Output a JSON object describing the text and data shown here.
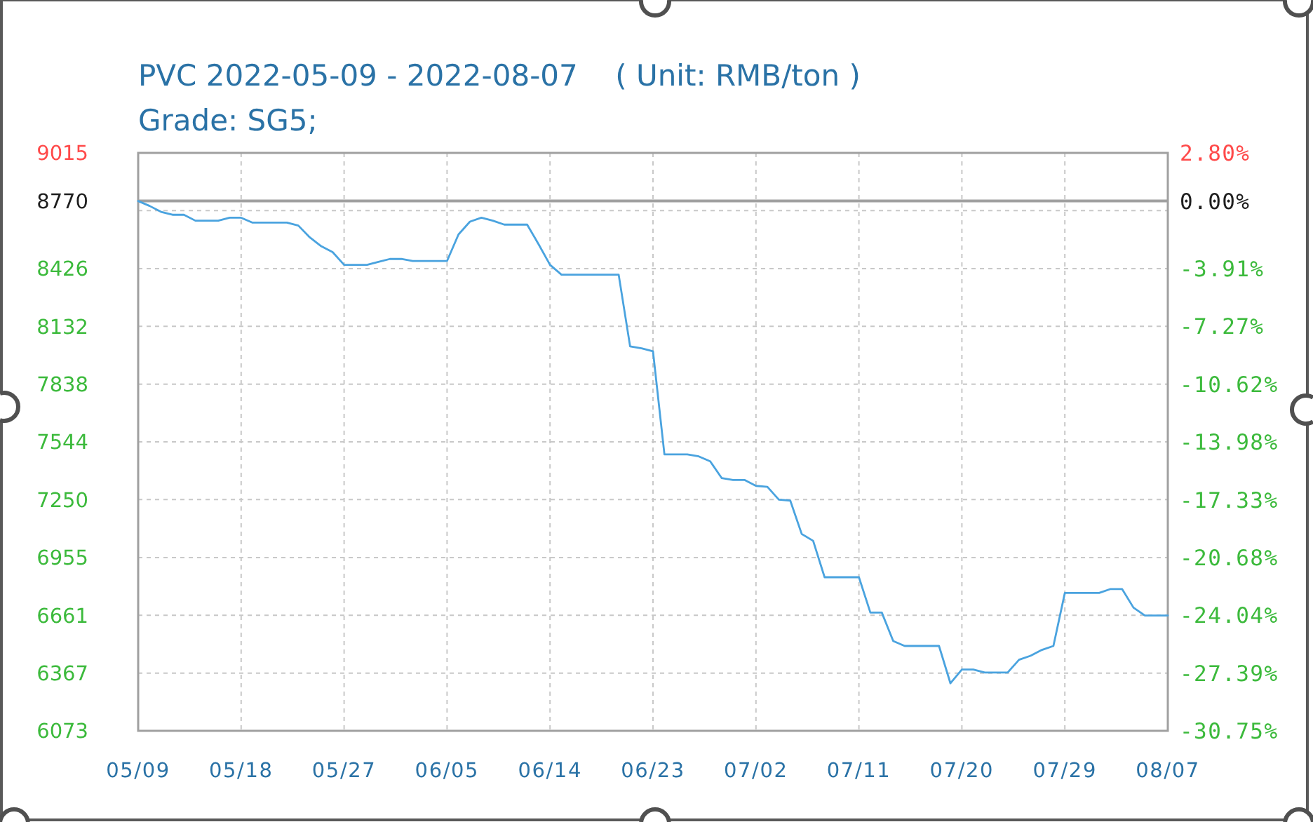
{
  "chart_data": {
    "type": "line",
    "title": "PVC 2022-05-09 - 2022-08-07    ( Unit: RMB/ton )",
    "subtitle": "Grade: SG5;",
    "x": [
      "2022-05-09",
      "2022-05-10",
      "2022-05-11",
      "2022-05-12",
      "2022-05-13",
      "2022-05-14",
      "2022-05-16",
      "2022-05-17",
      "2022-05-18",
      "2022-05-19",
      "2022-05-22",
      "2022-05-23",
      "2022-05-24",
      "2022-05-25",
      "2022-05-26",
      "2022-05-27",
      "2022-05-29",
      "2022-05-30",
      "2022-05-31",
      "2022-06-01",
      "2022-06-02",
      "2022-06-05",
      "2022-06-06",
      "2022-06-07",
      "2022-06-08",
      "2022-06-09",
      "2022-06-10",
      "2022-06-12",
      "2022-06-13",
      "2022-06-14",
      "2022-06-15",
      "2022-06-20",
      "2022-06-21",
      "2022-06-22",
      "2022-06-23",
      "2022-06-24",
      "2022-06-26",
      "2022-06-27",
      "2022-06-28",
      "2022-06-29",
      "2022-06-30",
      "2022-07-01",
      "2022-07-02",
      "2022-07-03",
      "2022-07-04",
      "2022-07-05",
      "2022-07-06",
      "2022-07-07",
      "2022-07-08",
      "2022-07-11",
      "2022-07-12",
      "2022-07-13",
      "2022-07-14",
      "2022-07-15",
      "2022-07-18",
      "2022-07-19",
      "2022-07-20",
      "2022-07-21",
      "2022-07-22",
      "2022-07-24",
      "2022-07-25",
      "2022-07-26",
      "2022-07-27",
      "2022-07-28",
      "2022-07-29",
      "2022-08-01",
      "2022-08-02",
      "2022-08-03",
      "2022-08-04",
      "2022-08-05",
      "2022-08-07"
    ],
    "series": [
      {
        "color": "#4aa3df",
        "values": [
          8770,
          8745,
          8715,
          8700,
          8700,
          8670,
          8670,
          8685,
          8685,
          8660,
          8660,
          8645,
          8585,
          8540,
          8510,
          8445,
          8445,
          8460,
          8475,
          8475,
          8465,
          8465,
          8600,
          8665,
          8685,
          8670,
          8650,
          8650,
          8550,
          8445,
          8395,
          8395,
          8030,
          8020,
          8005,
          7480,
          7480,
          7470,
          7445,
          7360,
          7350,
          7350,
          7320,
          7315,
          7250,
          7245,
          7075,
          7040,
          6855,
          6855,
          6675,
          6675,
          6530,
          6505,
          6505,
          6315,
          6385,
          6385,
          6370,
          6370,
          6435,
          6455,
          6485,
          6505,
          6775,
          6775,
          6795,
          6795,
          6700,
          6660,
          6660
        ]
      }
    ],
    "xlim": [
      "2022-05-09",
      "2022-08-07"
    ],
    "xticks": [
      {
        "value": "2022-05-09",
        "label": "05/09"
      },
      {
        "value": "2022-05-18",
        "label": "05/18"
      },
      {
        "value": "2022-05-27",
        "label": "05/27"
      },
      {
        "value": "2022-06-05",
        "label": "06/05"
      },
      {
        "value": "2022-06-14",
        "label": "06/14"
      },
      {
        "value": "2022-06-23",
        "label": "06/23"
      },
      {
        "value": "2022-07-02",
        "label": "07/02"
      },
      {
        "value": "2022-07-11",
        "label": "07/11"
      },
      {
        "value": "2022-07-20",
        "label": "07/20"
      },
      {
        "value": "2022-07-29",
        "label": "07/29"
      },
      {
        "value": "2022-08-07",
        "label": "08/07"
      }
    ],
    "ylim": [
      6073,
      9015
    ],
    "yticks": [
      6073,
      6367,
      6661,
      6955,
      7250,
      7544,
      7838,
      8132,
      8426,
      {
        "value": 8721,
        "label": null
      },
      8770,
      9015
    ],
    "y2lim": [
      -30.75,
      2.8
    ],
    "y2ticks": [
      {
        "value": 2.8,
        "label": "2.80%"
      },
      {
        "value": 0,
        "label": "0.00%"
      },
      {
        "value": -3.91,
        "label": "-3.91%"
      },
      {
        "value": -7.27,
        "label": "-7.27%"
      },
      {
        "value": -10.62,
        "label": "-10.62%"
      },
      {
        "value": -13.98,
        "label": "-13.98%"
      },
      {
        "value": -17.33,
        "label": "-17.33%"
      },
      {
        "value": -20.68,
        "label": "-20.68%"
      },
      {
        "value": -24.04,
        "label": "-24.04%"
      },
      {
        "value": -27.39,
        "label": "-27.39%"
      },
      {
        "value": -30.75,
        "label": "-30.75%"
      }
    ],
    "ref_lines": [
      {
        "axis": "y",
        "value": 8770,
        "color": "#a0a0a0"
      }
    ],
    "grid": true,
    "line_style": "solid"
  }
}
